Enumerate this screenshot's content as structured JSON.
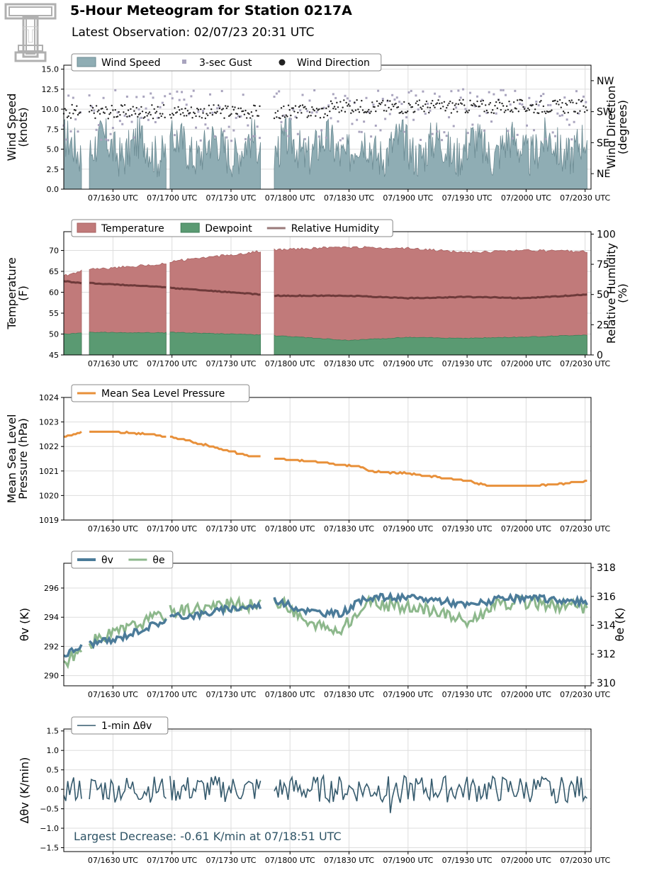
{
  "header": {
    "title": "5-Hour Meteogram for Station 0217A",
    "subtitle": "Latest Observation: 02/07/23 20:31 UTC",
    "logo_letter": "T",
    "logo_color": "#b0b0b0"
  },
  "x_tick_labels": [
    "07/1630 UTC",
    "07/1700 UTC",
    "07/1730 UTC",
    "07/1800 UTC",
    "07/1830 UTC",
    "07/1900 UTC",
    "07/1930 UTC",
    "07/2000 UTC",
    "07/2030 UTC"
  ],
  "colors": {
    "wind_speed": "#8fadb4",
    "wind_speed_edge": "#6b8a92",
    "gust": "#a9a4be",
    "direction": "#222222",
    "temperature": "#c17a7a",
    "dewpoint": "#5a9a72",
    "rh": "#6e3a3a",
    "pressure": "#e8903a",
    "theta_v": "#4b7b99",
    "theta_e": "#8db88c",
    "dtheta": "#355a6d",
    "annotation": "#2f5466"
  },
  "chart_data": [
    {
      "id": "wind",
      "type": "area",
      "ylabel": "Wind Speed\n(knots)",
      "y2label": "Wind Direction\n(degrees)",
      "ylim": [
        0,
        15.5
      ],
      "yticks": [
        "0.0",
        "2.5",
        "5.0",
        "7.5",
        "10.0",
        "12.5",
        "15.0"
      ],
      "y2ticks": [
        "NE",
        "SE",
        "SW",
        "NW"
      ],
      "legend": [
        "Wind Speed",
        "3-sec Gust",
        "Wind Direction"
      ],
      "grid": true,
      "time_range": [
        "16:05",
        "20:31"
      ],
      "data_gaps": [
        [
          "16:14",
          "16:18"
        ],
        [
          "16:57",
          "16:59"
        ],
        [
          "17:45",
          "17:52"
        ]
      ],
      "series": [
        {
          "name": "Wind Speed",
          "mean_knots": 5.2,
          "range_knots": [
            1.5,
            8.5
          ]
        },
        {
          "name": "3-sec Gust",
          "range_knots": [
            3.0,
            13.3
          ]
        },
        {
          "name": "Wind Direction",
          "mean": "SW",
          "range": [
            "SE",
            "NW"
          ]
        }
      ]
    },
    {
      "id": "temperature",
      "type": "area",
      "ylabel": "Temperature\n(F)",
      "y2label": "Relative Humidity\n(%)",
      "ylim": [
        45,
        74.5
      ],
      "y2lim": [
        0,
        102
      ],
      "yticks": [
        "45",
        "50",
        "55",
        "60",
        "65",
        "70"
      ],
      "y2ticks": [
        "0",
        "25",
        "50",
        "75",
        "100"
      ],
      "legend": [
        "Temperature",
        "Dewpoint",
        "Relative Humidity"
      ],
      "grid": true,
      "series": [
        {
          "name": "Temperature",
          "x": [
            "16:05",
            "16:14",
            "16:18",
            "16:57",
            "16:59",
            "17:45",
            "17:52",
            "18:30",
            "19:00",
            "19:30",
            "20:00",
            "20:31"
          ],
          "values": [
            64.0,
            65.0,
            65.4,
            66.8,
            67.3,
            69.8,
            70.2,
            70.8,
            70.5,
            69.5,
            70.0,
            69.8
          ]
        },
        {
          "name": "Dewpoint",
          "x": [
            "16:05",
            "16:14",
            "16:18",
            "16:57",
            "16:59",
            "17:45",
            "17:52",
            "18:30",
            "19:00",
            "19:30",
            "20:00",
            "20:31"
          ],
          "values": [
            50.0,
            50.2,
            50.4,
            50.3,
            50.4,
            49.8,
            49.6,
            48.5,
            49.2,
            49.0,
            49.3,
            49.8
          ]
        },
        {
          "name": "Relative Humidity",
          "x": [
            "16:05",
            "16:14",
            "16:18",
            "16:57",
            "16:59",
            "17:45",
            "17:52",
            "18:30",
            "19:00",
            "19:30",
            "20:00",
            "20:31"
          ],
          "values": [
            61,
            59.5,
            59.5,
            56,
            55.5,
            50,
            49,
            49,
            47,
            48,
            47,
            50
          ]
        }
      ]
    },
    {
      "id": "pressure",
      "type": "line",
      "ylabel": "Mean Sea Level\nPressure (hPa)",
      "ylim": [
        1019,
        1024
      ],
      "yticks": [
        "1019",
        "1020",
        "1021",
        "1022",
        "1023",
        "1024"
      ],
      "legend": [
        "Mean Sea Level Pressure"
      ],
      "grid": true,
      "series": [
        {
          "name": "Mean Sea Level Pressure",
          "x": [
            "16:05",
            "16:10",
            "16:14",
            "16:18",
            "16:30",
            "16:50",
            "16:57",
            "16:59",
            "17:10",
            "17:25",
            "17:40",
            "17:45",
            "17:52",
            "18:10",
            "18:20",
            "18:35",
            "18:40",
            "19:00",
            "19:20",
            "19:30",
            "19:40",
            "19:55",
            "20:05",
            "20:20",
            "20:31"
          ],
          "values": [
            1022.4,
            1022.5,
            1022.6,
            1022.6,
            1022.6,
            1022.5,
            1022.4,
            1022.4,
            1022.2,
            1021.9,
            1021.6,
            1021.6,
            1021.5,
            1021.4,
            1021.3,
            1021.2,
            1021.0,
            1020.9,
            1020.7,
            1020.6,
            1020.4,
            1020.4,
            1020.4,
            1020.5,
            1020.6
          ]
        }
      ]
    },
    {
      "id": "theta",
      "type": "line",
      "ylabel": "θv (K)",
      "y2label": "θe (K)",
      "ylim": [
        289.3,
        297.7
      ],
      "y2lim": [
        309.8,
        318.3
      ],
      "yticks": [
        "290",
        "292",
        "294",
        "296"
      ],
      "y2ticks": [
        "310",
        "312",
        "314",
        "316",
        "318"
      ],
      "legend": [
        "θv",
        "θe"
      ],
      "grid": true,
      "series": [
        {
          "name": "θv",
          "x": [
            "16:05",
            "16:14",
            "16:18",
            "16:30",
            "16:45",
            "16:57",
            "16:59",
            "17:15",
            "17:30",
            "17:45",
            "17:52",
            "18:00",
            "18:10",
            "18:25",
            "18:40",
            "19:00",
            "19:15",
            "19:30",
            "19:45",
            "20:00",
            "20:15",
            "20:31"
          ],
          "values": [
            291.4,
            292.0,
            292.2,
            292.4,
            293.2,
            293.8,
            294.0,
            294.2,
            294.6,
            294.8,
            295.2,
            294.8,
            294.4,
            294.2,
            295.4,
            295.3,
            295.2,
            294.8,
            295.2,
            295.3,
            295.2,
            295.0
          ]
        },
        {
          "name": "θe",
          "x": [
            "16:05",
            "16:14",
            "16:18",
            "16:30",
            "16:45",
            "16:57",
            "16:59",
            "17:15",
            "17:30",
            "17:45",
            "17:52",
            "18:00",
            "18:10",
            "18:25",
            "18:40",
            "19:00",
            "19:15",
            "19:30",
            "19:45",
            "20:00",
            "20:15",
            "20:31"
          ],
          "values": [
            311.4,
            312.2,
            312.8,
            313.4,
            314.2,
            314.8,
            315.0,
            315.2,
            315.4,
            315.4,
            315.8,
            315.2,
            314.0,
            313.6,
            315.6,
            315.2,
            315.0,
            314.2,
            315.4,
            315.6,
            315.4,
            315.2
          ]
        }
      ]
    },
    {
      "id": "dtheta",
      "type": "line",
      "ylabel": "Δθv (K/min)",
      "ylim": [
        -1.6,
        1.55
      ],
      "yticks": [
        "−1.5",
        "−1.0",
        "−0.5",
        "0.0",
        "0.5",
        "1.0",
        "1.5"
      ],
      "legend": [
        "1-min Δθv"
      ],
      "grid": true,
      "annotation": "Largest Decrease: -0.61 K/min at 07/18:51 UTC",
      "series": [
        {
          "name": "1-min Δθv",
          "mean": 0.0,
          "range": [
            -0.61,
            0.52
          ]
        }
      ]
    }
  ]
}
